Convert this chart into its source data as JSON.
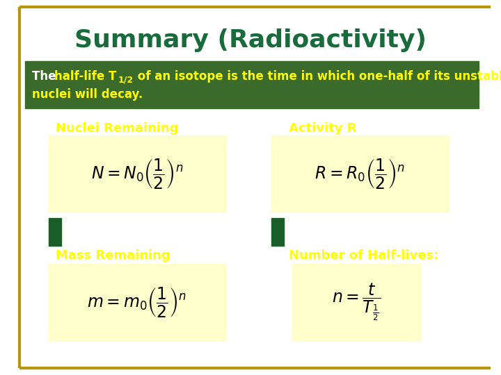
{
  "title": "Summary (Radioactivity)",
  "title_color": "#1a6b3c",
  "bg_color": "#ffffff",
  "border_color": "#b8960c",
  "green_box_color": "#3a6b2a",
  "yellow_label_color": "#ffff00",
  "arrow_color": "#1a5c2a",
  "formula_color": "#000000",
  "formula_bg": "#ffffcc",
  "section1_label": "Nuclei Remaining",
  "section2_label": "Activity R",
  "section3_label": "Mass Remaining",
  "section4_label": "Number of Half-lives:",
  "formula1": "$N = N_0 \\left(\\dfrac{1}{2}\\right)^n$",
  "formula2": "$R = R_0 \\left(\\dfrac{1}{2}\\right)^n$",
  "formula3": "$m = m_0 \\left(\\dfrac{1}{2}\\right)^n$",
  "formula4": "$n = \\dfrac{t}{T_{\\frac{1}{2}}}$"
}
